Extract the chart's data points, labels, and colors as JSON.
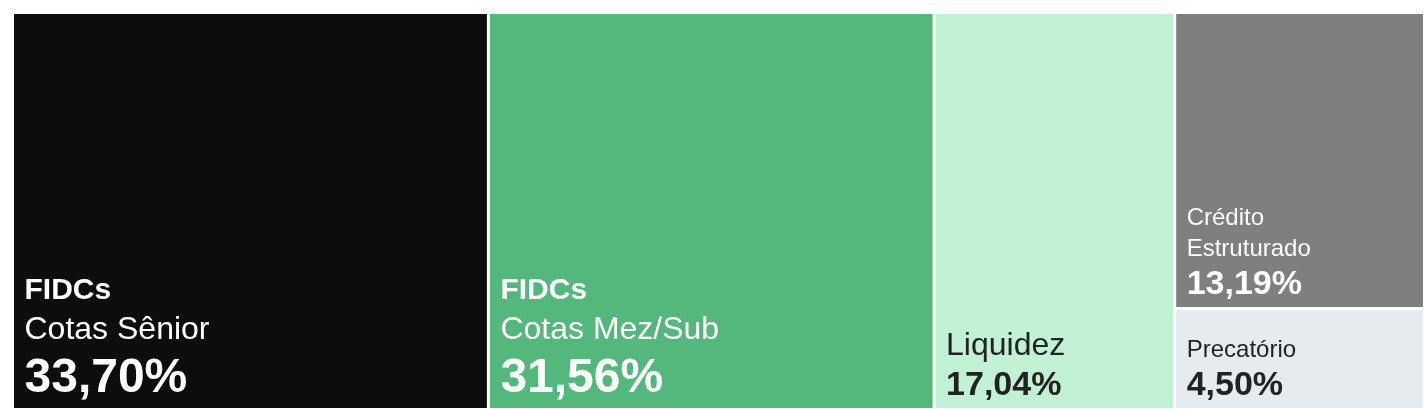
{
  "chart_data": {
    "type": "other",
    "categories": [
      "Cotas Sênior",
      "Cotas Mez/Sub",
      "Liquidez",
      "Crédito Estruturado",
      "Precatório"
    ],
    "values": [
      33.7,
      31.56,
      17.04,
      13.19,
      4.5
    ],
    "value_labels": [
      "33,70%",
      "31,56%",
      "17,04%",
      "13,19%",
      "4,50%"
    ],
    "colors": [
      "#0d0d0d",
      "#54b87c",
      "#c2f2d4",
      "#7f7f7f",
      "#e5ebee"
    ],
    "annotations": [
      {
        "text": "FIDCs",
        "x": "Cotas Sênior"
      },
      {
        "text": "FIDCs",
        "x": "Cotas Mez/Sub"
      }
    ]
  }
}
